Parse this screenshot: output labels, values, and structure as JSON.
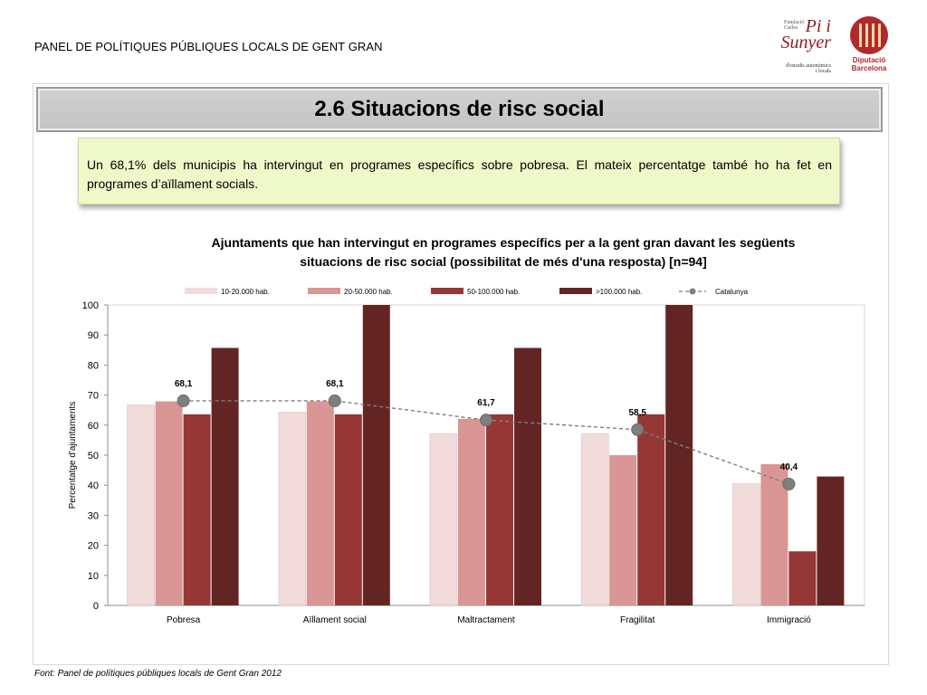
{
  "header": {
    "text": "PANEL DE POLÍTIQUES PÚBLIQUES LOCALS DE GENT GRAN"
  },
  "logos": {
    "pi_small": "Fundació Carles",
    "pi_big": "Pi i Sunyer",
    "pi_sub": "d'estudis autonòmics i locals",
    "diputacio": "Diputació Barcelona"
  },
  "section": {
    "title": "2.6 Situacions de risc social"
  },
  "note": {
    "text": "Un 68,1% dels municipis ha intervingut en programes específics sobre pobresa. El mateix percentatge també ho ha fet en programes d’aïllament socials."
  },
  "chart_data": {
    "type": "bar",
    "title": "Ajuntaments que han intervingut en programes específics per a la gent gran davant les següents situacions de risc social  (possibilitat de més d'una resposta) [n=94]",
    "ylabel": "Percentatge d'ajuntaments",
    "xlabel": "",
    "ylim": [
      0,
      100
    ],
    "yticks": [
      0,
      10,
      20,
      30,
      40,
      50,
      60,
      70,
      80,
      90,
      100
    ],
    "grid": false,
    "legend_position": "top",
    "categories": [
      "Pobresa",
      "Aïllament social",
      "Maltractament",
      "Fragilitat",
      "Immigració"
    ],
    "series": [
      {
        "name": "10-20.000 hab.",
        "color": "#f2dcdb",
        "values": [
          66.7,
          64.3,
          57.1,
          57.1,
          40.5
        ]
      },
      {
        "name": "20-50.000 hab.",
        "color": "#d99694",
        "values": [
          67.9,
          67.9,
          62.1,
          50.0,
          47.0
        ]
      },
      {
        "name": "50-100.000 hab.",
        "color": "#953735",
        "values": [
          63.6,
          63.6,
          63.6,
          63.6,
          18.0
        ]
      },
      {
        "name": ">100.000 hab.",
        "color": "#632523",
        "values": [
          85.7,
          100,
          85.7,
          100,
          42.9
        ]
      }
    ],
    "line": {
      "name": "Catalunya",
      "color": "#7f7f7f",
      "values": [
        68.1,
        68.1,
        61.7,
        58.5,
        40.4
      ],
      "labels": [
        "68,1",
        "68,1",
        "61,7",
        "58,5",
        "40,4"
      ]
    }
  },
  "source": {
    "text": "Font: Panel de  polítiques públiques locals de Gent Gran 2012"
  }
}
